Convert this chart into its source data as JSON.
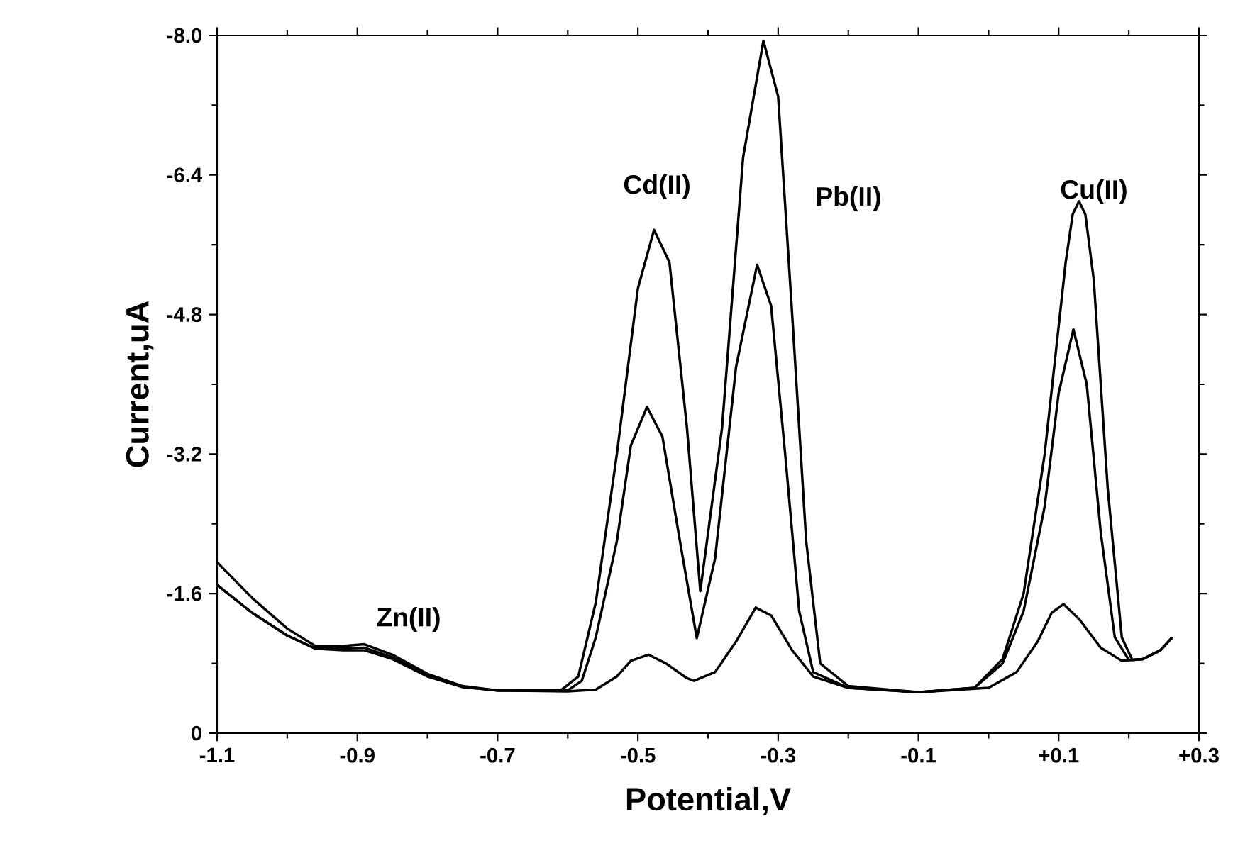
{
  "chart_data": {
    "type": "line",
    "xlabel": "Potential,V",
    "ylabel": "Current,uA",
    "xlim": [
      -1.1,
      0.3
    ],
    "ylim": [
      0,
      -8
    ],
    "xticks": [
      -1.1,
      -0.9,
      -0.7,
      -0.5,
      -0.3,
      -0.1,
      {
        "value": 0.1,
        "label": "+0.1"
      },
      {
        "value": 0.3,
        "label": "+0.3"
      }
    ],
    "yticks": [
      0,
      -1.6,
      -3.2,
      -4.8,
      -6.4,
      {
        "value": -8,
        "label": "-8.0"
      }
    ],
    "grid": false,
    "marker": "none",
    "line_style": "solid",
    "series": [
      {
        "color": "#000000",
        "x": [
          -1.1,
          -1.05,
          -1.0,
          -0.96,
          -0.92,
          -0.89,
          -0.85,
          -0.8,
          -0.75,
          -0.7,
          -0.61,
          -0.585,
          -0.56,
          -0.53,
          -0.5,
          -0.477,
          -0.455,
          -0.43,
          -0.411,
          -0.38,
          -0.35,
          -0.321,
          -0.3,
          -0.28,
          -0.26,
          -0.24,
          -0.2,
          -0.1,
          -0.02,
          0.02,
          0.05,
          0.08,
          0.11,
          0.12,
          0.129,
          0.138,
          0.15,
          0.17,
          0.19,
          0.205,
          0.22,
          0.245,
          0.261
        ],
        "values": [
          -1.96,
          -1.55,
          -1.2,
          -1.0,
          -1.0,
          -1.02,
          -0.9,
          -0.68,
          -0.54,
          -0.49,
          -0.49,
          -0.65,
          -1.5,
          -3.2,
          -5.1,
          -5.77,
          -5.4,
          -3.5,
          -1.63,
          -3.5,
          -6.6,
          -7.94,
          -7.3,
          -4.8,
          -2.2,
          -0.8,
          -0.54,
          -0.47,
          -0.52,
          -0.85,
          -1.6,
          -3.2,
          -5.4,
          -5.95,
          -6.1,
          -5.95,
          -5.2,
          -2.8,
          -1.1,
          -0.84,
          -0.85,
          -0.95,
          -1.09
        ]
      },
      {
        "color": "#000000",
        "x": [
          -1.1,
          -1.05,
          -1.0,
          -0.96,
          -0.92,
          -0.89,
          -0.85,
          -0.8,
          -0.75,
          -0.7,
          -0.6,
          -0.58,
          -0.56,
          -0.53,
          -0.51,
          -0.487,
          -0.465,
          -0.44,
          -0.416,
          -0.39,
          -0.36,
          -0.33,
          -0.31,
          -0.29,
          -0.27,
          -0.25,
          -0.2,
          -0.1,
          -0.02,
          0.02,
          0.05,
          0.08,
          0.1,
          0.121,
          0.14,
          0.16,
          0.18,
          0.2,
          0.22,
          0.245,
          0.261
        ],
        "values": [
          -1.7,
          -1.38,
          -1.12,
          -0.97,
          -0.97,
          -0.98,
          -0.87,
          -0.66,
          -0.53,
          -0.49,
          -0.49,
          -0.6,
          -1.1,
          -2.2,
          -3.3,
          -3.74,
          -3.4,
          -2.2,
          -1.09,
          -2.0,
          -4.2,
          -5.37,
          -4.9,
          -3.2,
          -1.4,
          -0.7,
          -0.52,
          -0.47,
          -0.52,
          -0.8,
          -1.4,
          -2.6,
          -3.9,
          -4.63,
          -4.0,
          -2.3,
          -1.1,
          -0.84,
          -0.85,
          -0.95,
          -1.09
        ]
      },
      {
        "color": "#000000",
        "x": [
          -1.1,
          -1.05,
          -1.0,
          -0.96,
          -0.92,
          -0.89,
          -0.85,
          -0.8,
          -0.75,
          -0.7,
          -0.6,
          -0.56,
          -0.53,
          -0.51,
          -0.485,
          -0.46,
          -0.43,
          -0.42,
          -0.39,
          -0.36,
          -0.332,
          -0.31,
          -0.28,
          -0.25,
          -0.2,
          -0.1,
          0.0,
          0.04,
          0.07,
          0.09,
          0.107,
          0.13,
          0.16,
          0.19,
          0.22,
          0.245,
          0.261
        ],
        "values": [
          -1.7,
          -1.38,
          -1.12,
          -0.97,
          -0.95,
          -0.95,
          -0.85,
          -0.65,
          -0.53,
          -0.49,
          -0.48,
          -0.5,
          -0.65,
          -0.83,
          -0.9,
          -0.8,
          -0.63,
          -0.6,
          -0.7,
          -1.05,
          -1.44,
          -1.35,
          -0.95,
          -0.65,
          -0.52,
          -0.47,
          -0.52,
          -0.7,
          -1.05,
          -1.38,
          -1.48,
          -1.3,
          -0.98,
          -0.83,
          -0.85,
          -0.95,
          -1.09
        ]
      }
    ],
    "annotations": [
      "Zn(II)",
      "Cd(II)",
      "Pb(II)",
      "Cu(II)"
    ]
  }
}
